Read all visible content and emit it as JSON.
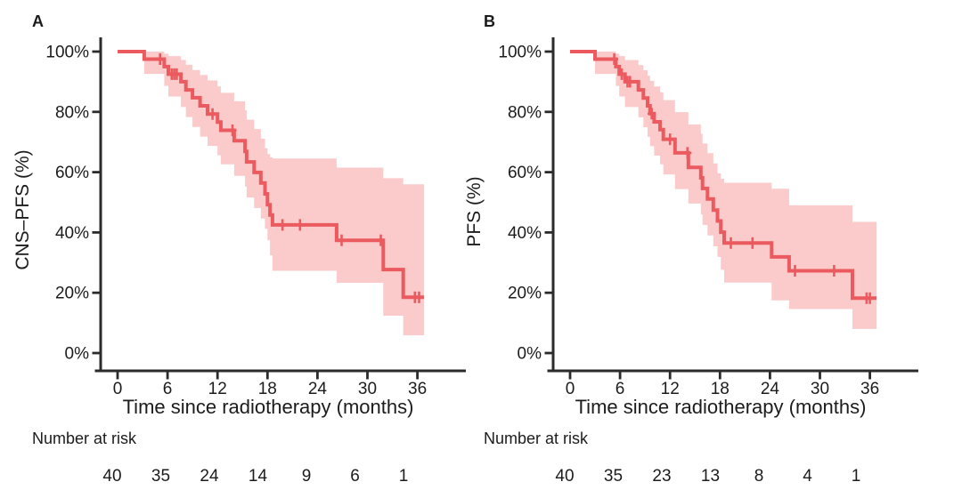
{
  "colors": {
    "curve": "#ea5a5e",
    "band": "#fbcaca",
    "axis": "#2b2b2b",
    "text": "#1c1c1c",
    "background": "#ffffff"
  },
  "chart_data": [
    {
      "type": "line",
      "subtype": "kaplan-meier-step-curve-with-confidence-band",
      "panel_label": "A",
      "ylabel": "CNS–PFS (%)",
      "xlabel": "Time since radiotherapy (months)",
      "xlim": [
        0,
        38
      ],
      "ylim": [
        0,
        100
      ],
      "x_ticks": [
        0,
        6,
        12,
        18,
        24,
        30,
        36
      ],
      "y_tick_values": [
        0,
        20,
        40,
        60,
        80,
        100
      ],
      "y_tick_labels": [
        "0%",
        "20%",
        "40%",
        "60%",
        "80%",
        "100%"
      ],
      "grid": false,
      "legend": "none",
      "series": [
        {
          "name": "CNS-PFS",
          "end_time": 36.8,
          "steps": [
            [
              0,
              100
            ],
            [
              3.2,
              97.5
            ],
            [
              5.6,
              95
            ],
            [
              6.1,
              92.5
            ],
            [
              7.6,
              90
            ],
            [
              8.2,
              87.3
            ],
            [
              9,
              84.7
            ],
            [
              9.9,
              82
            ],
            [
              10.8,
              79.3
            ],
            [
              12,
              76.6
            ],
            [
              12.4,
              73.9
            ],
            [
              14,
              70.4
            ],
            [
              15.3,
              66.9
            ],
            [
              15.5,
              63.4
            ],
            [
              16.4,
              59.9
            ],
            [
              17.2,
              56.4
            ],
            [
              17.7,
              52.8
            ],
            [
              18,
              49.2
            ],
            [
              18.3,
              45.8
            ],
            [
              18.6,
              42.5
            ],
            [
              26.3,
              37.4
            ],
            [
              31.9,
              27.7
            ],
            [
              34.3,
              18.5
            ]
          ],
          "censor_marks": [
            [
              5.1,
              97.5
            ],
            [
              6.5,
              92.5
            ],
            [
              6.8,
              92.5
            ],
            [
              7.1,
              92.5
            ],
            [
              11.4,
              79.3
            ],
            [
              13.8,
              73.9
            ],
            [
              19.8,
              42.5
            ],
            [
              21.9,
              42.5
            ],
            [
              26.9,
              37.4
            ],
            [
              31.6,
              37.4
            ],
            [
              35.7,
              18.5
            ],
            [
              36.2,
              18.5
            ]
          ]
        }
      ],
      "ci_upper": [
        [
          0,
          100
        ],
        [
          3.2,
          100
        ],
        [
          5.6,
          99.3
        ],
        [
          6.1,
          98.5
        ],
        [
          7.6,
          97.2
        ],
        [
          8.2,
          95.6
        ],
        [
          9,
          93.9
        ],
        [
          9.9,
          92.2
        ],
        [
          10.8,
          90.4
        ],
        [
          12,
          88.4
        ],
        [
          12.4,
          86.3
        ],
        [
          14,
          83.5
        ],
        [
          15.3,
          80.5
        ],
        [
          15.5,
          77.4
        ],
        [
          16.4,
          74.3
        ],
        [
          17.2,
          71.1
        ],
        [
          17.7,
          67.9
        ],
        [
          18,
          66
        ],
        [
          18.3,
          65
        ],
        [
          18.6,
          64.5
        ],
        [
          26.3,
          61.5
        ],
        [
          31.9,
          58
        ],
        [
          34.3,
          56
        ]
      ],
      "ci_lower": [
        [
          0,
          100
        ],
        [
          3.2,
          92.6
        ],
        [
          5.6,
          88.6
        ],
        [
          6.1,
          85.1
        ],
        [
          7.6,
          81.6
        ],
        [
          8.2,
          78.3
        ],
        [
          9,
          75
        ],
        [
          9.9,
          71.8
        ],
        [
          10.8,
          68.7
        ],
        [
          12,
          65.6
        ],
        [
          12.4,
          62.6
        ],
        [
          14,
          58.8
        ],
        [
          15.3,
          55.2
        ],
        [
          15.5,
          51.6
        ],
        [
          16.4,
          48.1
        ],
        [
          17.2,
          44.6
        ],
        [
          17.7,
          41.2
        ],
        [
          18,
          37.4
        ],
        [
          18.3,
          32.4
        ],
        [
          18.6,
          27.3
        ],
        [
          26.3,
          23.3
        ],
        [
          31.9,
          12.4
        ],
        [
          34.3,
          5.9
        ]
      ],
      "risk_table": {
        "label": "Number at risk",
        "times": [
          0,
          6,
          12,
          18,
          24,
          30,
          36
        ],
        "counts": [
          40,
          35,
          24,
          14,
          9,
          6,
          1
        ]
      }
    },
    {
      "type": "line",
      "subtype": "kaplan-meier-step-curve-with-confidence-band",
      "panel_label": "B",
      "ylabel": "PFS (%)",
      "xlabel": "Time since radiotherapy (months)",
      "xlim": [
        0,
        38
      ],
      "ylim": [
        0,
        100
      ],
      "x_ticks": [
        0,
        6,
        12,
        18,
        24,
        30,
        36
      ],
      "y_tick_values": [
        0,
        20,
        40,
        60,
        80,
        100
      ],
      "y_tick_labels": [
        "0%",
        "20%",
        "40%",
        "60%",
        "80%",
        "100%"
      ],
      "grid": false,
      "legend": "none",
      "series": [
        {
          "name": "PFS",
          "end_time": 36.8,
          "steps": [
            [
              0,
              100
            ],
            [
              3,
              97.5
            ],
            [
              5.5,
              95
            ],
            [
              5.9,
              92.5
            ],
            [
              6.6,
              90
            ],
            [
              8.2,
              87.3
            ],
            [
              8.8,
              84.6
            ],
            [
              9.3,
              82
            ],
            [
              9.6,
              79.4
            ],
            [
              10.1,
              76.7
            ],
            [
              10.8,
              74.1
            ],
            [
              11.2,
              70.9
            ],
            [
              12.6,
              66.4
            ],
            [
              14.2,
              61.6
            ],
            [
              15.7,
              58.1
            ],
            [
              15.9,
              54.6
            ],
            [
              16.5,
              51.1
            ],
            [
              17.2,
              47.4
            ],
            [
              17.7,
              43.8
            ],
            [
              18.1,
              40.1
            ],
            [
              18.5,
              36.5
            ],
            [
              24.2,
              31.9
            ],
            [
              26.3,
              27.3
            ],
            [
              33.9,
              18.2
            ]
          ],
          "censor_marks": [
            [
              5.3,
              97.5
            ],
            [
              6.2,
              92.5
            ],
            [
              6.9,
              90
            ],
            [
              7.2,
              90
            ],
            [
              9.8,
              79.4
            ],
            [
              12,
              70.9
            ],
            [
              14.1,
              66.4
            ],
            [
              19.3,
              36.5
            ],
            [
              21.9,
              36.5
            ],
            [
              27,
              27.3
            ],
            [
              31.7,
              27.3
            ],
            [
              35.6,
              18.2
            ],
            [
              36,
              18.2
            ]
          ]
        }
      ],
      "ci_upper": [
        [
          0,
          100
        ],
        [
          3,
          100
        ],
        [
          5.5,
          99.3
        ],
        [
          5.9,
          98.5
        ],
        [
          6.6,
          97.2
        ],
        [
          8.2,
          95.5
        ],
        [
          8.8,
          93.8
        ],
        [
          9.3,
          92
        ],
        [
          9.6,
          90.3
        ],
        [
          10.1,
          88.4
        ],
        [
          10.8,
          86.5
        ],
        [
          11.2,
          83.9
        ],
        [
          12.6,
          79.9
        ],
        [
          14.2,
          75.8
        ],
        [
          15.7,
          72.7
        ],
        [
          15.9,
          69.5
        ],
        [
          16.5,
          66.3
        ],
        [
          17.2,
          62.9
        ],
        [
          17.7,
          59.6
        ],
        [
          18.1,
          57.8
        ],
        [
          18.5,
          56.5
        ],
        [
          24.2,
          54.5
        ],
        [
          26.3,
          49
        ],
        [
          33.9,
          43.5
        ]
      ],
      "ci_lower": [
        [
          0,
          100
        ],
        [
          3,
          92.6
        ],
        [
          5.5,
          88.6
        ],
        [
          5.9,
          85.1
        ],
        [
          6.6,
          81.6
        ],
        [
          8.2,
          78.2
        ],
        [
          8.8,
          74.9
        ],
        [
          9.3,
          71.7
        ],
        [
          9.6,
          68.6
        ],
        [
          10.1,
          65.5
        ],
        [
          10.8,
          62.6
        ],
        [
          11.2,
          59.2
        ],
        [
          12.6,
          54.4
        ],
        [
          14.2,
          49.6
        ],
        [
          15.7,
          46
        ],
        [
          15.9,
          42.5
        ],
        [
          16.5,
          39
        ],
        [
          17.2,
          35.4
        ],
        [
          17.7,
          31.9
        ],
        [
          18.1,
          27.6
        ],
        [
          18.5,
          23.4
        ],
        [
          24.2,
          17.5
        ],
        [
          26.3,
          14.6
        ],
        [
          33.9,
          8
        ]
      ],
      "risk_table": {
        "label": "Number at risk",
        "times": [
          0,
          6,
          12,
          18,
          24,
          30,
          36
        ],
        "counts": [
          40,
          35,
          23,
          13,
          8,
          4,
          1
        ]
      }
    }
  ]
}
